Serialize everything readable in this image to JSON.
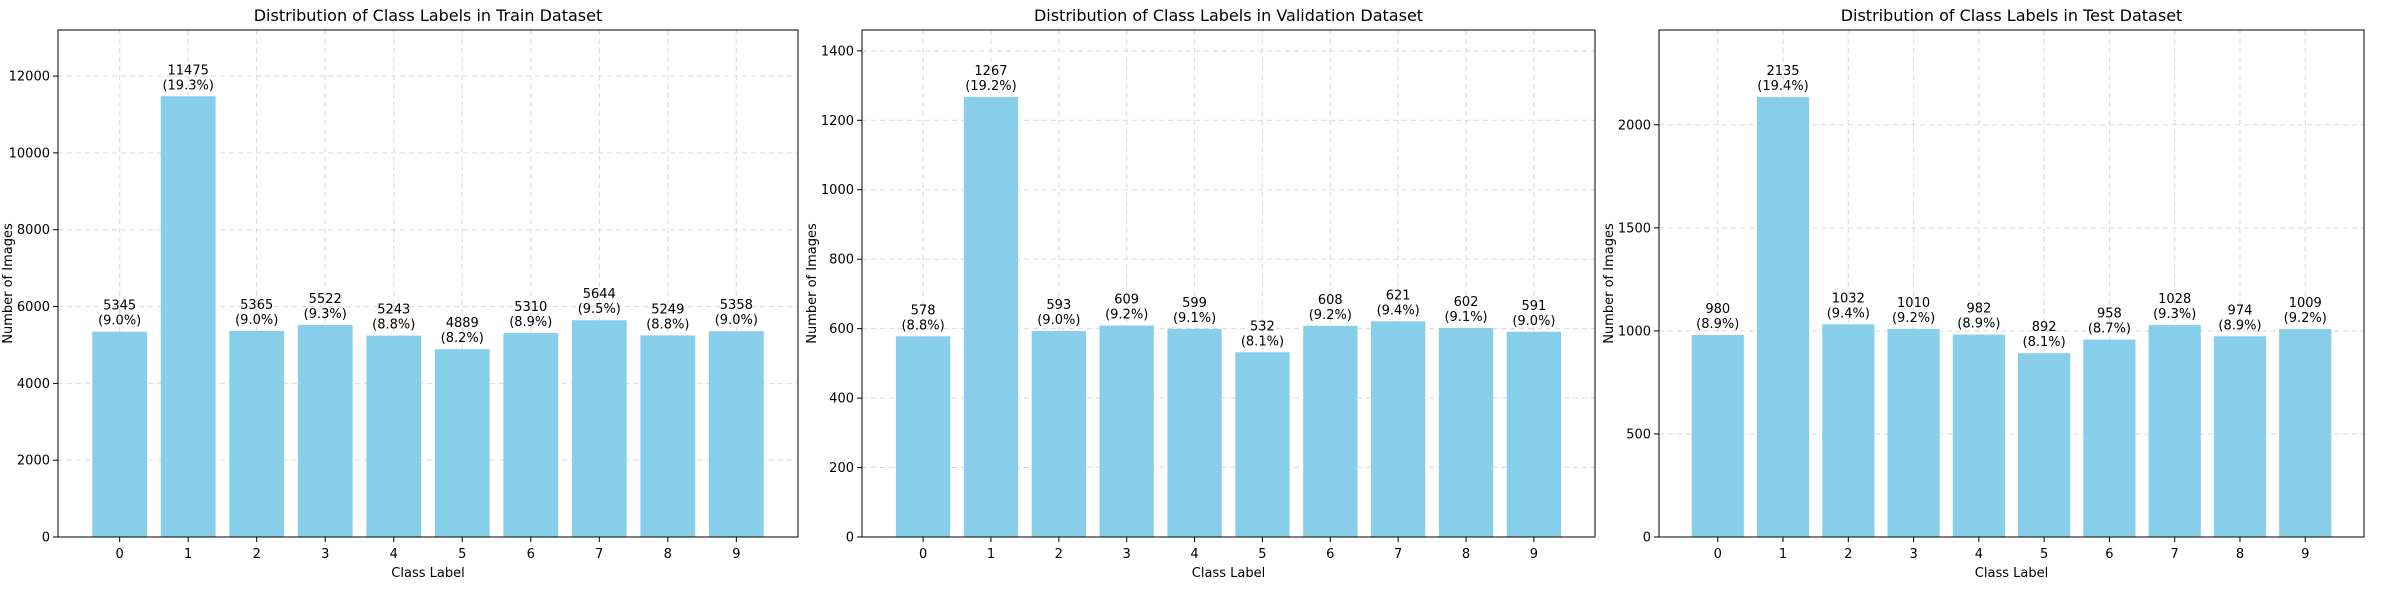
{
  "chart_data": [
    {
      "type": "bar",
      "title": "Distribution of Class Labels in Train Dataset",
      "xlabel": "Class Label",
      "ylabel": "Number of Images",
      "categories": [
        "0",
        "1",
        "2",
        "3",
        "4",
        "5",
        "6",
        "7",
        "8",
        "9"
      ],
      "values": [
        5345,
        11475,
        5365,
        5522,
        5243,
        4889,
        5310,
        5644,
        5249,
        5358
      ],
      "bar_labels": [
        "5345\n(9.0%)",
        "11475\n(19.3%)",
        "5365\n(9.0%)",
        "5522\n(9.3%)",
        "5243\n(8.8%)",
        "4889\n(8.2%)",
        "5310\n(8.9%)",
        "5644\n(9.5%)",
        "5249\n(8.8%)",
        "5358\n(9.0%)"
      ],
      "yticks": [
        0,
        2000,
        4000,
        6000,
        8000,
        10000,
        12000
      ],
      "ylim": [
        0,
        13200
      ],
      "grid": true,
      "bar_color": "#87ceeb"
    },
    {
      "type": "bar",
      "title": "Distribution of Class Labels in Validation Dataset",
      "xlabel": "Class Label",
      "ylabel": "Number of Images",
      "categories": [
        "0",
        "1",
        "2",
        "3",
        "4",
        "5",
        "6",
        "7",
        "8",
        "9"
      ],
      "values": [
        578,
        1267,
        593,
        609,
        599,
        532,
        608,
        621,
        602,
        591
      ],
      "bar_labels": [
        "578\n(8.8%)",
        "1267\n(19.2%)",
        "593\n(9.0%)",
        "609\n(9.2%)",
        "599\n(9.1%)",
        "532\n(8.1%)",
        "608\n(9.2%)",
        "621\n(9.4%)",
        "602\n(9.1%)",
        "591\n(9.0%)"
      ],
      "yticks": [
        0,
        200,
        400,
        600,
        800,
        1000,
        1200,
        1400
      ],
      "ylim": [
        0,
        1460
      ],
      "grid": true,
      "bar_color": "#87ceeb"
    },
    {
      "type": "bar",
      "title": "Distribution of Class Labels in Test Dataset",
      "xlabel": "Class Label",
      "ylabel": "Number of Images",
      "categories": [
        "0",
        "1",
        "2",
        "3",
        "4",
        "5",
        "6",
        "7",
        "8",
        "9"
      ],
      "values": [
        980,
        2135,
        1032,
        1010,
        982,
        892,
        958,
        1028,
        974,
        1009
      ],
      "bar_labels": [
        "980\n(8.9%)",
        "2135\n(19.4%)",
        "1032\n(9.4%)",
        "1010\n(9.2%)",
        "982\n(8.9%)",
        "892\n(8.1%)",
        "958\n(8.7%)",
        "1028\n(9.3%)",
        "974\n(8.9%)",
        "1009\n(9.2%)"
      ],
      "yticks": [
        0,
        500,
        1000,
        1500,
        2000
      ],
      "ylim": [
        0,
        2460
      ],
      "grid": true,
      "bar_color": "#87ceeb"
    }
  ]
}
